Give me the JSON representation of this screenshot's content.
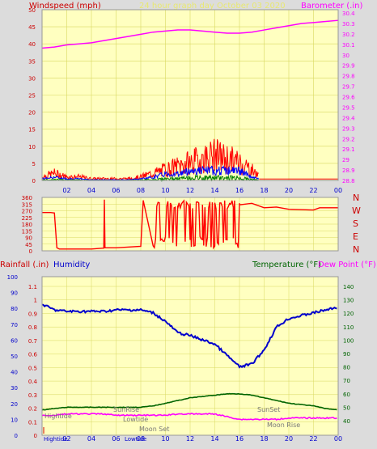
{
  "header": {
    "windspeed_label": "Windspeed (mph)",
    "title": "24 hour graph day   October 03 2020",
    "barometer_label": "Barometer (.in)"
  },
  "colors": {
    "wind": "#ff0000",
    "wind_avg": "#0000ff",
    "wind_gust_low": "#008000",
    "barometer": "#ff00ff",
    "humidity": "#0000cc",
    "temperature": "#006400",
    "dewpoint": "#ff00ff",
    "rain_label": "#cc0000",
    "plot_bg": "#ffffc0",
    "grid": "#d8d860"
  },
  "x_ticks": [
    "02",
    "04",
    "06",
    "08",
    "10",
    "12",
    "14",
    "16",
    "18",
    "20",
    "22",
    "00"
  ],
  "bottom_x_ticks": [
    "02",
    "04",
    "06",
    "08",
    "10",
    "12",
    "14",
    "16",
    "18",
    "20",
    "22",
    "00"
  ],
  "panel1": {
    "left_ticks": [
      "50",
      "45",
      "40",
      "35",
      "30",
      "25",
      "20",
      "15",
      "10",
      "5",
      "0"
    ],
    "right_ticks": [
      "30.4",
      "30.3",
      "30.2",
      "30.1",
      "30",
      "29.9",
      "29.8",
      "29.7",
      "29.6",
      "29.5",
      "29.4",
      "29.3",
      "29.2",
      "29.1",
      "29",
      "28.9",
      "28.8"
    ]
  },
  "panel2": {
    "left_ticks": [
      "360",
      "315",
      "270",
      "225",
      "180",
      "135",
      "90",
      "45",
      "0"
    ],
    "compass": [
      "N",
      "W",
      "S",
      "E",
      "N"
    ]
  },
  "panel3": {
    "rainfall_label": "Rainfall (.in)",
    "humidity_label": "Humidity",
    "temperature_label": "Temperature (°F)",
    "dewpoint_label": "Dew Point (°F)",
    "humidity_ticks": [
      "100",
      "90",
      "80",
      "70",
      "60",
      "50",
      "40",
      "30",
      "20",
      "10",
      "0"
    ],
    "rain_ticks": [
      "1.1",
      "1",
      "0.9",
      "0.8",
      "0.7",
      "0.6",
      "0.5",
      "0.4",
      "0.3",
      "0.2",
      "0.1",
      "0"
    ],
    "temp_ticks": [
      "140",
      "130",
      "120",
      "110",
      "100",
      "90",
      "80",
      "70",
      "60",
      "50",
      "40"
    ],
    "annotations": {
      "hightide": "Hightide",
      "sunrise": "SunRise",
      "lowtide": "Lowtide",
      "moonset": "Moon Set",
      "sunset": "SunSet",
      "moonrise": "Moon Rise",
      "hightide_bottom": "Hightide",
      "lowtide_bottom": "Lowtide"
    }
  },
  "chart_data": [
    {
      "type": "line",
      "title": "24 hour graph day   October 03 2020",
      "ylabel": "Windspeed (mph)",
      "y2label": "Barometer (.in)",
      "ylim": [
        0,
        50
      ],
      "y2lim": [
        28.8,
        30.4
      ],
      "x_hours": [
        0,
        1,
        2,
        3,
        4,
        5,
        6,
        7,
        8,
        9,
        10,
        11,
        12,
        13,
        14,
        15,
        16,
        17,
        18,
        19,
        20,
        21,
        22,
        23,
        24
      ],
      "series": [
        {
          "name": "Barometer (.in)",
          "axis": "right",
          "values": [
            30.04,
            30.05,
            30.07,
            30.08,
            30.09,
            30.11,
            30.13,
            30.15,
            30.17,
            30.19,
            30.2,
            30.21,
            30.21,
            30.2,
            30.19,
            30.18,
            30.18,
            30.19,
            30.21,
            30.23,
            30.25,
            30.27,
            30.28,
            30.29,
            30.3
          ]
        },
        {
          "name": "Windspeed (mph)",
          "axis": "left",
          "values": [
            1,
            2,
            1,
            1,
            0.5,
            0.5,
            0.5,
            0.5,
            1,
            2,
            3,
            4,
            5,
            6,
            7,
            6,
            5,
            3,
            0,
            0,
            0,
            0,
            0,
            0,
            0
          ]
        },
        {
          "name": "Wind avg",
          "axis": "left",
          "values": [
            0.5,
            1,
            0.5,
            0.5,
            0.2,
            0.2,
            0.2,
            0.2,
            0.5,
            1,
            2,
            2,
            3,
            3,
            3,
            3,
            3,
            1,
            0,
            0,
            0,
            0,
            0,
            0,
            0
          ]
        }
      ]
    },
    {
      "type": "line",
      "ylabel": "Wind direction",
      "ylim": [
        0,
        360
      ],
      "x_hours": [
        0,
        0.7,
        1,
        1.2,
        1.4,
        4,
        5,
        5.05,
        5.1,
        6,
        8,
        8.2,
        9,
        10,
        11,
        12,
        13,
        14,
        15,
        15.5,
        16,
        17,
        18,
        19,
        20,
        22,
        22.5,
        24
      ],
      "values": [
        258,
        258,
        255,
        20,
        12,
        12,
        18,
        345,
        20,
        20,
        30,
        340,
        270,
        290,
        300,
        240,
        250,
        300,
        290,
        270,
        310,
        320,
        290,
        295,
        280,
        275,
        290,
        290
      ]
    },
    {
      "type": "line",
      "ylabel": "Humidity",
      "y2label": "Temperature (°F)",
      "ylim": [
        0,
        100
      ],
      "y2lim": [
        40,
        140
      ],
      "x_hours": [
        0,
        1,
        2,
        3,
        4,
        5,
        6,
        7,
        8,
        9,
        10,
        11,
        12,
        13,
        14,
        15,
        16,
        17,
        18,
        19,
        20,
        21,
        22,
        23,
        24
      ],
      "series": [
        {
          "name": "Humidity",
          "axis": "left",
          "values": [
            92,
            88,
            87,
            87,
            87,
            87,
            88,
            88,
            88,
            86,
            80,
            72,
            70,
            67,
            64,
            56,
            48,
            50,
            60,
            76,
            82,
            84,
            86,
            88,
            90
          ]
        },
        {
          "name": "Temperature (°F)",
          "axis": "right",
          "values": [
            48,
            49,
            50,
            50,
            50,
            50,
            50,
            50,
            50,
            51,
            53,
            55,
            57,
            58,
            59,
            60,
            60,
            59,
            57,
            55,
            53,
            52,
            51,
            49,
            48
          ]
        },
        {
          "name": "Dew Point (°F)",
          "axis": "right",
          "values": [
            44,
            44,
            45,
            45,
            45,
            45,
            44,
            44,
            44,
            44,
            44,
            45,
            45,
            45,
            45,
            43,
            41,
            41,
            41,
            41,
            42,
            42,
            42,
            42,
            42
          ]
        }
      ]
    }
  ]
}
